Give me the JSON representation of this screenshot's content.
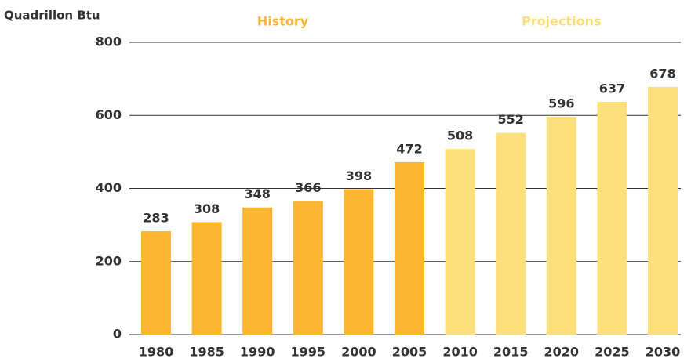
{
  "chart_data": {
    "type": "bar",
    "y_label": "Quadrillon Btu",
    "categories": [
      "1980",
      "1985",
      "1990",
      "1995",
      "2000",
      "2005",
      "2010",
      "2015",
      "2020",
      "2025",
      "2030"
    ],
    "series": [
      {
        "name": "History",
        "color": "#fbb731",
        "values": [
          283,
          308,
          348,
          366,
          398,
          472,
          null,
          null,
          null,
          null,
          null
        ]
      },
      {
        "name": "Projections",
        "color": "#fddf7b",
        "values": [
          null,
          null,
          null,
          null,
          null,
          null,
          508,
          552,
          596,
          637,
          678
        ]
      }
    ],
    "ylim": [
      0,
      800
    ],
    "yticks": [
      0,
      200,
      400,
      600,
      800
    ],
    "grid": true
  }
}
